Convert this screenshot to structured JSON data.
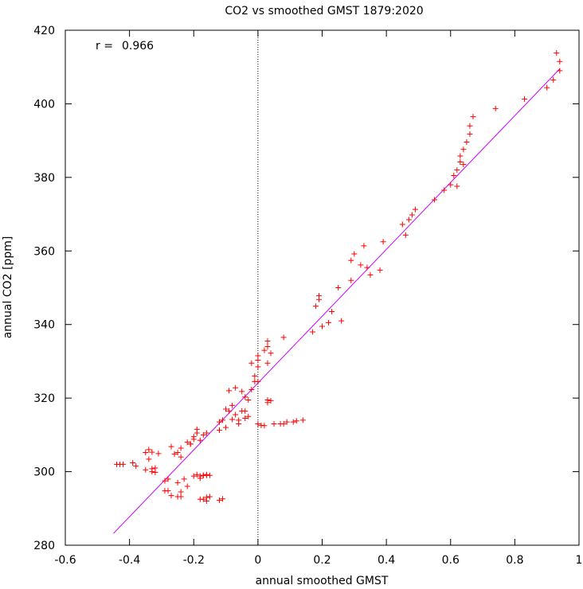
{
  "chart_data": {
    "type": "scatter",
    "title": "CO2 vs smoothed GMST 1879:2020",
    "xlabel": "annual smoothed GMST",
    "ylabel": "annual CO2 [ppm]",
    "xlim": [
      -0.6,
      1
    ],
    "ylim": [
      280,
      420
    ],
    "x_ticks": [
      -0.6,
      -0.4,
      -0.2,
      0,
      0.2,
      0.4,
      0.6,
      0.8,
      1
    ],
    "x_tick_labels": [
      "-0.6",
      "-0.4",
      "-0.2",
      "0",
      "0.2",
      "0.4",
      "0.6",
      "0.8",
      "1"
    ],
    "y_ticks": [
      280,
      300,
      320,
      340,
      360,
      380,
      400,
      420
    ],
    "y_tick_labels": [
      "280",
      "300",
      "320",
      "340",
      "360",
      "380",
      "400",
      "420"
    ],
    "annotation": {
      "label": "r =",
      "value": "0.966"
    },
    "grid": false,
    "zero_line": {
      "x": 0,
      "style": "dotted"
    },
    "colors": {
      "points": "#ff0000",
      "fit": "#cc00ff",
      "axis": "#000000"
    },
    "series": [
      {
        "kind": "points",
        "marker": "plus",
        "x": [
          -0.44,
          -0.43,
          -0.42,
          -0.39,
          -0.38,
          -0.35,
          -0.34,
          -0.33,
          -0.32,
          -0.35,
          -0.33,
          -0.32,
          -0.34,
          -0.31,
          -0.33,
          -0.29,
          -0.28,
          -0.28,
          -0.27,
          -0.29,
          -0.26,
          -0.25,
          -0.24,
          -0.27,
          -0.24,
          -0.22,
          -0.21,
          -0.2,
          -0.19,
          -0.18,
          -0.17,
          -0.16,
          -0.19,
          -0.2,
          -0.21,
          -0.18,
          -0.17,
          -0.16,
          -0.15,
          -0.18,
          -0.17,
          -0.16,
          -0.22,
          -0.25,
          -0.24,
          -0.23,
          -0.24,
          -0.25,
          -0.2,
          -0.19,
          -0.18,
          -0.17,
          -0.16,
          -0.15,
          -0.16,
          -0.12,
          -0.11,
          -0.12,
          -0.12,
          -0.11,
          -0.1,
          -0.09,
          -0.08,
          -0.07,
          -0.06,
          -0.05,
          -0.05,
          -0.04,
          -0.03,
          -0.02,
          -0.01,
          0.0,
          -0.02,
          -0.1,
          -0.09,
          -0.06,
          -0.08,
          -0.07,
          -0.04,
          -0.03,
          -0.04,
          -0.01,
          0.0,
          0.0,
          0.0,
          0.02,
          0.03,
          0.04,
          0.03,
          0.03,
          0.03,
          0.05,
          0.07,
          0.08,
          0.09,
          0.11,
          0.12,
          0.14,
          0.08,
          0.04,
          0.03,
          0.02,
          0.0,
          0.01,
          0.17,
          0.18,
          0.19,
          0.19,
          0.2,
          0.22,
          0.23,
          0.25,
          0.26,
          0.29,
          0.29,
          0.3,
          0.32,
          0.33,
          0.34,
          0.35,
          0.38,
          0.39,
          0.45,
          0.46,
          0.47,
          0.48,
          0.49,
          0.55,
          0.58,
          0.6,
          0.61,
          0.62,
          0.63,
          0.63,
          0.64,
          0.65,
          0.66,
          0.66,
          0.67,
          0.62,
          0.64,
          0.74,
          0.83,
          0.9,
          0.92,
          0.93,
          0.94,
          0.94
        ],
        "y": [
          302,
          302,
          302,
          302.4,
          301.5,
          305.2,
          306,
          305.3,
          301,
          300.5,
          300.8,
          299.8,
          303.4,
          304.9,
          300,
          297.5,
          298,
          294.8,
          293.5,
          294.8,
          304.8,
          305.2,
          306.4,
          306.8,
          304,
          308,
          307.5,
          309.5,
          310.5,
          308.5,
          310,
          310.5,
          311.5,
          308.8,
          307.5,
          298.8,
          299,
          299,
          299,
          298.2,
          299,
          299.2,
          296,
          297,
          294.5,
          298,
          293.2,
          293.2,
          298.8,
          299.2,
          292.5,
          292.5,
          293,
          293.2,
          292,
          292.2,
          292.6,
          311.3,
          313.5,
          314,
          312,
          316.5,
          318,
          322.8,
          314,
          316.5,
          321.8,
          314.5,
          315,
          322.3,
          326,
          324.5,
          329.5,
          317,
          322,
          313,
          314.2,
          315.5,
          320.3,
          319.5,
          316.5,
          324.5,
          328.5,
          330.3,
          331.5,
          333,
          334,
          332.2,
          329.5,
          319.5,
          335.5,
          313,
          313,
          313,
          313.5,
          313.5,
          313.8,
          314,
          336.5,
          319.3,
          318.8,
          312.5,
          313,
          312.6,
          338,
          345,
          346.8,
          347.8,
          339.5,
          340.5,
          343.5,
          350,
          341,
          352,
          357.4,
          359.2,
          356.2,
          361.4,
          355.5,
          353.5,
          354.8,
          362.5,
          367.2,
          364.3,
          368.5,
          369.8,
          371.3,
          373.9,
          376.5,
          378,
          380.5,
          382,
          384.2,
          385.8,
          387.6,
          389.6,
          391.8,
          394,
          396.5,
          377.6,
          383.5,
          398.7,
          401.3,
          404.4,
          406.5,
          413.8,
          409,
          411.5
        ]
      },
      {
        "kind": "fit",
        "x": [
          -0.45,
          0.94
        ],
        "y": [
          283.2,
          409.5
        ]
      }
    ]
  }
}
